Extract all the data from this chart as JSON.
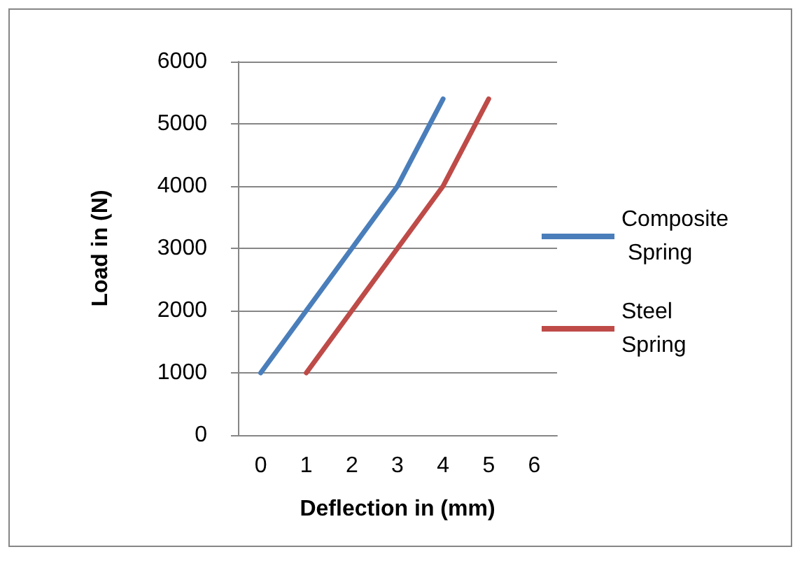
{
  "chart_data": {
    "type": "line",
    "xlabel": "Deflection in (mm)",
    "ylabel": "Load in (N)",
    "categories": [
      "0",
      "1",
      "2",
      "3",
      "4",
      "5",
      "6"
    ],
    "series": [
      {
        "name": "Composite Spring",
        "color": "#4a7ebb",
        "values": [
          1000,
          2000,
          3000,
          4000,
          5400,
          null,
          null
        ]
      },
      {
        "name": "Steel Spring",
        "color": "#be4b48",
        "values": [
          null,
          1000,
          2000,
          3000,
          4000,
          5400,
          null
        ]
      }
    ],
    "ylim": [
      0,
      6000
    ],
    "yticks": [
      0,
      1000,
      2000,
      3000,
      4000,
      5000,
      6000
    ],
    "grid": "y",
    "legend": "right",
    "marker": "none",
    "line_style": "solid"
  }
}
